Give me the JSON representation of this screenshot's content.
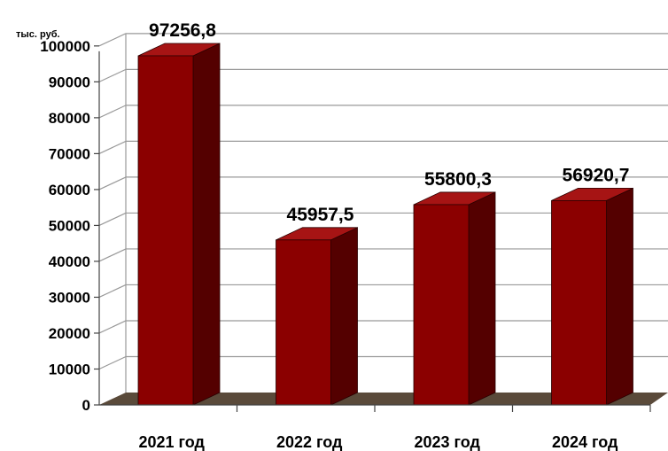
{
  "chart_data": {
    "type": "bar",
    "title": "",
    "ylabel": "тыс. руб.",
    "xlabel": "",
    "categories": [
      "2021 год",
      "2022 год",
      "2023 год",
      "2024 год"
    ],
    "values": [
      97256.8,
      45957.5,
      55800.3,
      56920.7
    ],
    "value_labels": [
      "97256,8",
      "45957,5",
      "55800,3",
      "56920,7"
    ],
    "ylim": [
      0,
      100000
    ],
    "yticks": [
      0,
      10000,
      20000,
      30000,
      40000,
      50000,
      60000,
      70000,
      80000,
      90000,
      100000
    ],
    "grid": true,
    "legend": "none",
    "three_d": true,
    "colors": {
      "bar_front": "#8b0000",
      "bar_side": "#540000",
      "bar_top": "#a61414",
      "floor": "#5a4a3a",
      "grid": "#999999",
      "axis": "#444444"
    }
  }
}
